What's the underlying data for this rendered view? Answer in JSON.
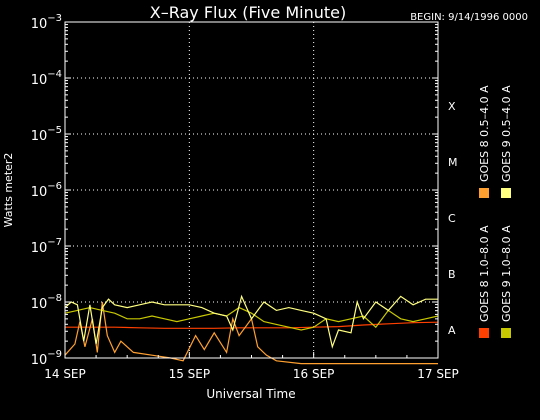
{
  "chart_data": {
    "type": "line",
    "title": "X–Ray Flux (Five Minute)",
    "begin_label": "BEGIN: 9/14/1996 0000",
    "xlabel": "Universal Time",
    "ylabel": "Watts meter2",
    "y_scale": "log",
    "ylim_exp": [
      -9,
      -3
    ],
    "y_tick_base": "10",
    "y_ticks": [
      {
        "exp": -3,
        "sup": "−3"
      },
      {
        "exp": -4,
        "sup": "−4"
      },
      {
        "exp": -5,
        "sup": "−5"
      },
      {
        "exp": -6,
        "sup": "−6"
      },
      {
        "exp": -7,
        "sup": "−7"
      },
      {
        "exp": -8,
        "sup": "−8"
      },
      {
        "exp": -9,
        "sup": "−9"
      }
    ],
    "x_ticks": [
      {
        "day": 0,
        "label": "14 SEP"
      },
      {
        "day": 1,
        "label": "15 SEP"
      },
      {
        "day": 2,
        "label": "16 SEP"
      },
      {
        "day": 3,
        "label": "17 SEP"
      }
    ],
    "flare_classes": [
      {
        "label": "X",
        "exp": -4
      },
      {
        "label": "M",
        "exp": -5
      },
      {
        "label": "C",
        "exp": -6
      },
      {
        "label": "B",
        "exp": -7
      },
      {
        "label": "A",
        "exp": -8
      }
    ],
    "grid": "dotted",
    "legend_position": "right, rotated vertical",
    "series": [
      {
        "name": "GOES 8 1.0–8.0 A",
        "color": "#ff4000",
        "points": [
          [
            0,
            -8.45
          ],
          [
            0.2,
            -8.45
          ],
          [
            0.4,
            -8.45
          ],
          [
            0.6,
            -8.46
          ],
          [
            0.8,
            -8.47
          ],
          [
            1.0,
            -8.47
          ],
          [
            1.2,
            -8.47
          ],
          [
            1.4,
            -8.46
          ],
          [
            1.6,
            -8.46
          ],
          [
            1.8,
            -8.46
          ],
          [
            2.0,
            -8.45
          ],
          [
            2.2,
            -8.44
          ],
          [
            2.4,
            -8.41
          ],
          [
            2.6,
            -8.39
          ],
          [
            2.8,
            -8.37
          ],
          [
            3.0,
            -8.36
          ]
        ]
      },
      {
        "name": "GOES 8 0.5–4.0 A",
        "color": "#ffa030",
        "points": [
          [
            0,
            -8.95
          ],
          [
            0.08,
            -8.75
          ],
          [
            0.12,
            -8.35
          ],
          [
            0.16,
            -8.8
          ],
          [
            0.22,
            -8.3
          ],
          [
            0.26,
            -8.9
          ],
          [
            0.3,
            -8.0
          ],
          [
            0.34,
            -8.6
          ],
          [
            0.4,
            -8.9
          ],
          [
            0.45,
            -8.7
          ],
          [
            0.55,
            -8.9
          ],
          [
            0.7,
            -8.95
          ],
          [
            0.85,
            -9.0
          ],
          [
            0.95,
            -9.05
          ],
          [
            1.05,
            -8.6
          ],
          [
            1.12,
            -8.85
          ],
          [
            1.2,
            -8.55
          ],
          [
            1.3,
            -8.9
          ],
          [
            1.35,
            -8.3
          ],
          [
            1.4,
            -8.6
          ],
          [
            1.5,
            -8.3
          ],
          [
            1.55,
            -8.8
          ],
          [
            1.62,
            -8.95
          ],
          [
            1.7,
            -9.05
          ],
          [
            1.9,
            -9.1
          ],
          [
            2.1,
            -9.1
          ],
          [
            2.3,
            -9.1
          ],
          [
            2.5,
            -9.1
          ],
          [
            2.7,
            -9.1
          ],
          [
            3.0,
            -9.1
          ]
        ]
      },
      {
        "name": "GOES 9 1.0–8.0 A",
        "color": "#c8c800",
        "points": [
          [
            0,
            -8.2
          ],
          [
            0.1,
            -8.15
          ],
          [
            0.2,
            -8.1
          ],
          [
            0.3,
            -8.15
          ],
          [
            0.4,
            -8.2
          ],
          [
            0.5,
            -8.3
          ],
          [
            0.6,
            -8.3
          ],
          [
            0.7,
            -8.25
          ],
          [
            0.8,
            -8.3
          ],
          [
            0.9,
            -8.35
          ],
          [
            1.0,
            -8.3
          ],
          [
            1.1,
            -8.25
          ],
          [
            1.2,
            -8.2
          ],
          [
            1.3,
            -8.25
          ],
          [
            1.4,
            -8.1
          ],
          [
            1.5,
            -8.2
          ],
          [
            1.6,
            -8.35
          ],
          [
            1.7,
            -8.4
          ],
          [
            1.8,
            -8.45
          ],
          [
            1.9,
            -8.5
          ],
          [
            2.0,
            -8.45
          ],
          [
            2.1,
            -8.3
          ],
          [
            2.2,
            -8.35
          ],
          [
            2.3,
            -8.3
          ],
          [
            2.4,
            -8.25
          ],
          [
            2.5,
            -8.45
          ],
          [
            2.6,
            -8.15
          ],
          [
            2.7,
            -8.3
          ],
          [
            2.8,
            -8.35
          ],
          [
            2.9,
            -8.3
          ],
          [
            3.0,
            -8.25
          ]
        ]
      },
      {
        "name": "GOES 9 0.5–4.0 A",
        "color": "#ffff80",
        "points": [
          [
            0,
            -8.1
          ],
          [
            0.05,
            -8.0
          ],
          [
            0.1,
            -8.05
          ],
          [
            0.15,
            -8.7
          ],
          [
            0.2,
            -8.05
          ],
          [
            0.25,
            -8.75
          ],
          [
            0.3,
            -8.1
          ],
          [
            0.35,
            -7.95
          ],
          [
            0.4,
            -8.05
          ],
          [
            0.5,
            -8.1
          ],
          [
            0.6,
            -8.05
          ],
          [
            0.7,
            -8.0
          ],
          [
            0.8,
            -8.05
          ],
          [
            0.9,
            -8.05
          ],
          [
            1.0,
            -8.05
          ],
          [
            1.1,
            -8.1
          ],
          [
            1.2,
            -8.2
          ],
          [
            1.3,
            -8.25
          ],
          [
            1.35,
            -8.5
          ],
          [
            1.42,
            -7.9
          ],
          [
            1.5,
            -8.3
          ],
          [
            1.6,
            -8.0
          ],
          [
            1.7,
            -8.15
          ],
          [
            1.8,
            -8.1
          ],
          [
            1.9,
            -8.15
          ],
          [
            2.0,
            -8.2
          ],
          [
            2.1,
            -8.3
          ],
          [
            2.15,
            -8.8
          ],
          [
            2.2,
            -8.5
          ],
          [
            2.3,
            -8.55
          ],
          [
            2.35,
            -8.0
          ],
          [
            2.4,
            -8.3
          ],
          [
            2.5,
            -8.0
          ],
          [
            2.6,
            -8.15
          ],
          [
            2.7,
            -7.9
          ],
          [
            2.8,
            -8.05
          ],
          [
            2.9,
            -7.95
          ],
          [
            3.0,
            -7.95
          ]
        ]
      }
    ]
  }
}
